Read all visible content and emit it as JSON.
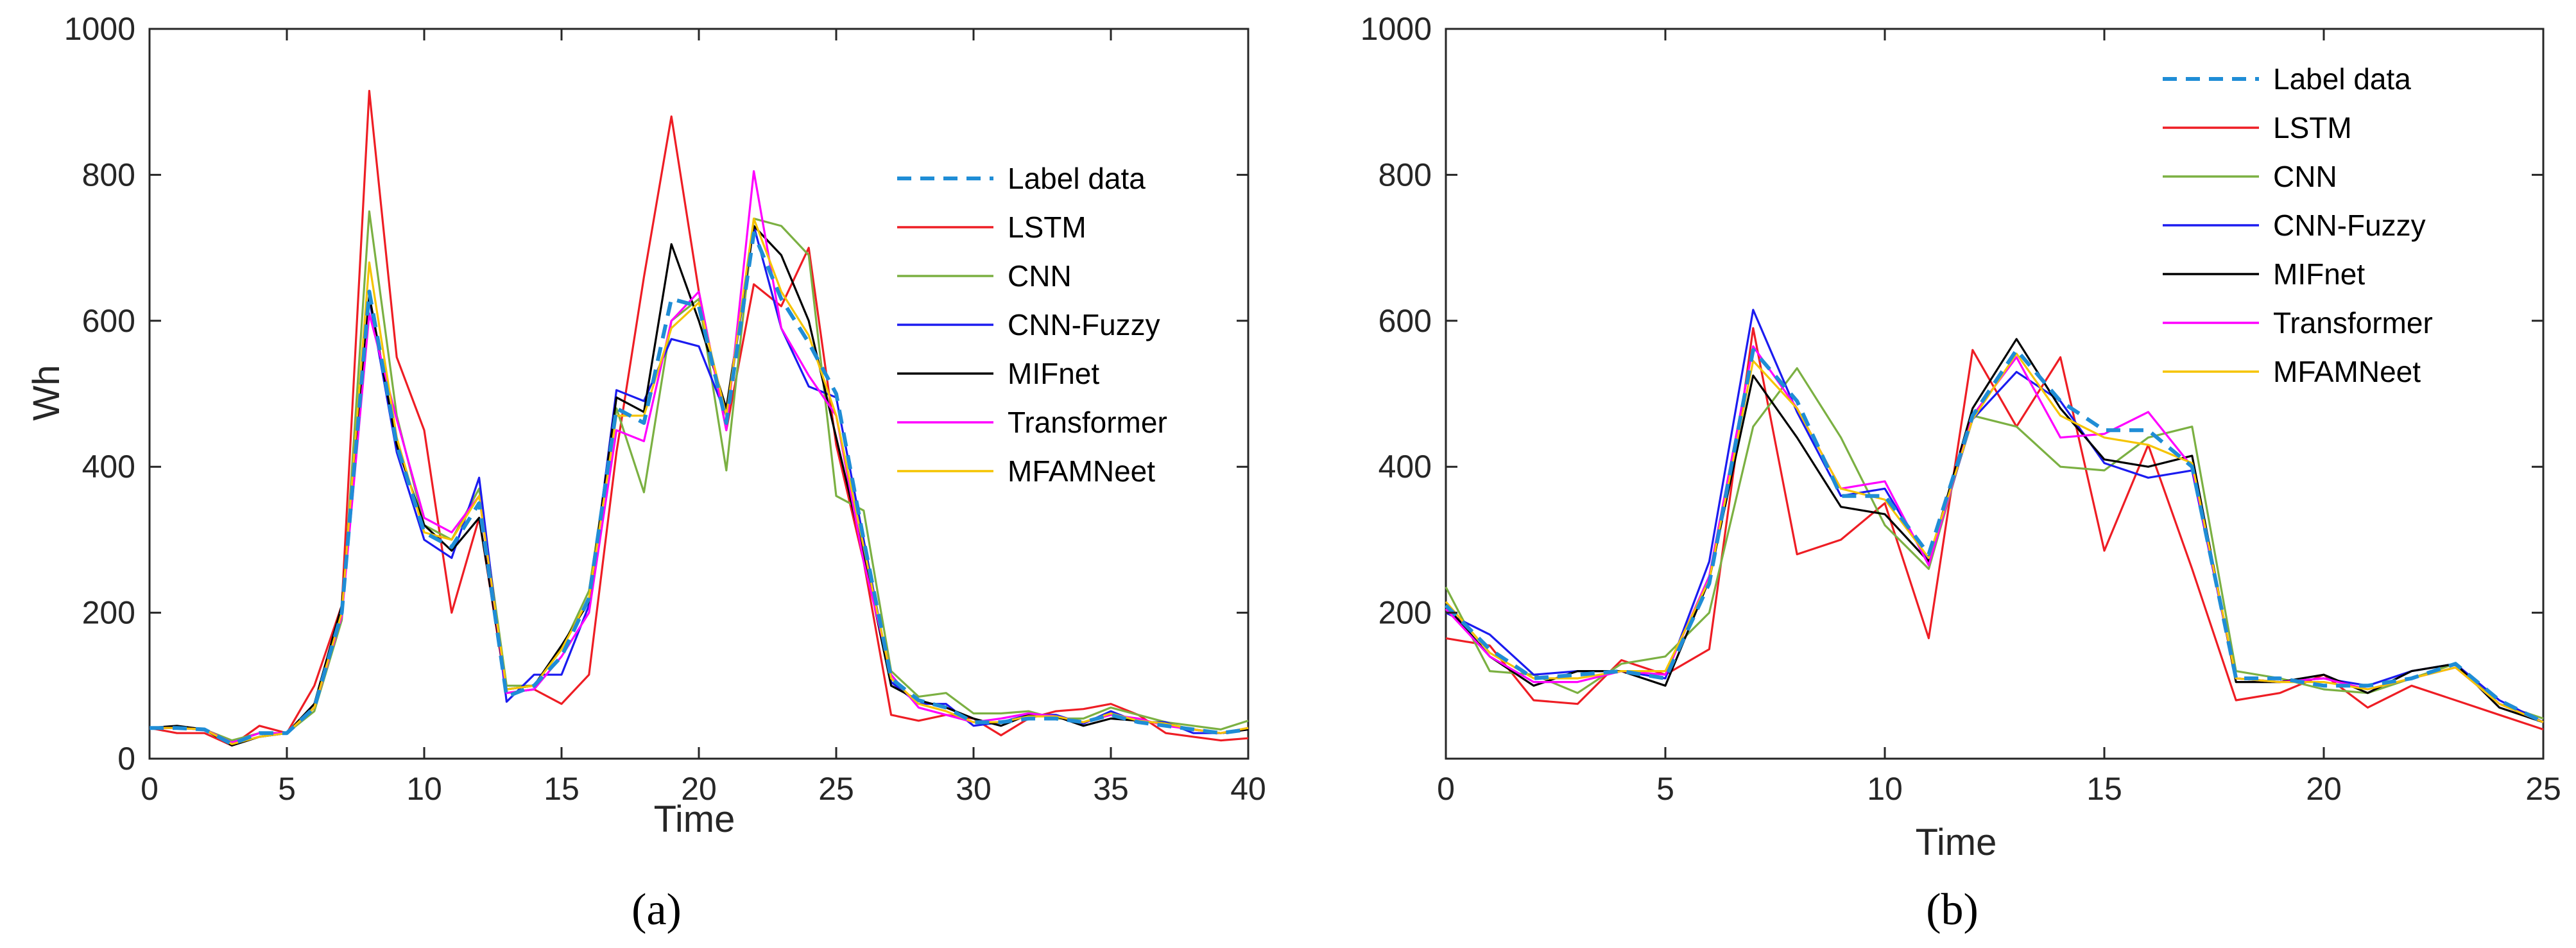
{
  "colors": {
    "Label data": "#1f8dd6",
    "LSTM": "#ee1d24",
    "CNN": "#7bb042",
    "CNN-Fuzzy": "#1b1bf0",
    "MIFnet": "#000000",
    "Transformer": "#ff00ff",
    "MFAMNeet": "#f5c400"
  },
  "chart_data": [
    {
      "id": "a",
      "type": "line",
      "caption": "(a)",
      "xlabel": "Time",
      "ylabel": "Wh",
      "xlim": [
        0,
        40
      ],
      "ylim": [
        0,
        1000
      ],
      "xticks": [
        0,
        5,
        10,
        15,
        20,
        25,
        30,
        35,
        40
      ],
      "yticks": [
        0,
        200,
        400,
        600,
        800,
        1000
      ],
      "x": [
        0,
        1,
        2,
        3,
        4,
        5,
        6,
        7,
        8,
        9,
        10,
        11,
        12,
        13,
        14,
        15,
        16,
        17,
        18,
        19,
        20,
        21,
        22,
        23,
        24,
        25,
        26,
        27,
        28,
        29,
        30,
        31,
        32,
        33,
        34,
        35,
        36,
        37,
        38,
        39,
        40
      ],
      "series": [
        {
          "name": "Label data",
          "dashed": true,
          "values": [
            42,
            42,
            40,
            20,
            35,
            35,
            70,
            200,
            640,
            430,
            310,
            290,
            350,
            85,
            100,
            140,
            220,
            480,
            460,
            630,
            620,
            460,
            720,
            630,
            570,
            500,
            300,
            110,
            80,
            70,
            50,
            50,
            55,
            55,
            50,
            60,
            50,
            45,
            40,
            35,
            40
          ]
        },
        {
          "name": "LSTM",
          "values": [
            42,
            35,
            35,
            18,
            45,
            35,
            100,
            210,
            915,
            550,
            450,
            200,
            330,
            90,
            95,
            75,
            115,
            420,
            660,
            880,
            640,
            450,
            650,
            620,
            700,
            430,
            270,
            60,
            52,
            60,
            55,
            32,
            55,
            65,
            68,
            75,
            60,
            35,
            30,
            25,
            28
          ]
        },
        {
          "name": "CNN",
          "values": [
            42,
            42,
            40,
            25,
            35,
            35,
            65,
            190,
            750,
            470,
            320,
            300,
            370,
            100,
            100,
            150,
            230,
            480,
            365,
            600,
            630,
            395,
            740,
            730,
            690,
            360,
            340,
            120,
            85,
            90,
            62,
            62,
            65,
            55,
            55,
            70,
            60,
            50,
            45,
            40,
            52
          ]
        },
        {
          "name": "CNN-Fuzzy",
          "values": [
            42,
            42,
            40,
            20,
            30,
            35,
            70,
            200,
            630,
            420,
            300,
            275,
            385,
            78,
            115,
            115,
            210,
            505,
            490,
            575,
            565,
            470,
            730,
            590,
            510,
            495,
            300,
            105,
            75,
            75,
            45,
            50,
            60,
            60,
            48,
            65,
            50,
            50,
            35,
            35,
            40
          ]
        },
        {
          "name": "MIFnet",
          "values": [
            42,
            45,
            40,
            18,
            30,
            35,
            75,
            210,
            635,
            430,
            320,
            285,
            330,
            95,
            100,
            155,
            215,
            495,
            475,
            705,
            600,
            480,
            730,
            690,
            600,
            440,
            280,
            100,
            80,
            70,
            55,
            45,
            60,
            58,
            45,
            55,
            52,
            48,
            40,
            35,
            40
          ]
        },
        {
          "name": "Transformer",
          "values": [
            42,
            42,
            40,
            22,
            35,
            35,
            70,
            195,
            610,
            465,
            330,
            310,
            360,
            90,
            95,
            140,
            200,
            450,
            435,
            600,
            640,
            450,
            805,
            590,
            525,
            470,
            270,
            115,
            70,
            60,
            50,
            55,
            62,
            58,
            50,
            60,
            55,
            45,
            40,
            35,
            42
          ]
        },
        {
          "name": "MFAMNeet",
          "values": [
            42,
            42,
            40,
            20,
            30,
            35,
            70,
            200,
            680,
            440,
            310,
            300,
            360,
            95,
            100,
            150,
            220,
            470,
            470,
            590,
            625,
            470,
            740,
            640,
            580,
            470,
            290,
            110,
            75,
            65,
            50,
            50,
            58,
            58,
            50,
            62,
            52,
            48,
            40,
            35,
            42
          ]
        }
      ]
    },
    {
      "id": "b",
      "type": "line",
      "caption": "(b)",
      "xlabel": "Time",
      "ylabel": "",
      "xlim": [
        0,
        25
      ],
      "ylim": [
        0,
        1000
      ],
      "xticks": [
        0,
        5,
        10,
        15,
        20,
        25
      ],
      "yticks": [
        200,
        400,
        600,
        800,
        1000
      ],
      "x": [
        0,
        1,
        2,
        3,
        4,
        5,
        6,
        7,
        8,
        9,
        10,
        11,
        12,
        13,
        14,
        15,
        16,
        17,
        18,
        19,
        20,
        21,
        22,
        23,
        24,
        25
      ],
      "series": [
        {
          "name": "Label data",
          "dashed": true,
          "values": [
            210,
            150,
            110,
            115,
            120,
            110,
            240,
            560,
            490,
            360,
            360,
            280,
            470,
            560,
            490,
            450,
            450,
            400,
            110,
            110,
            100,
            100,
            110,
            130,
            80,
            50
          ]
        },
        {
          "name": "LSTM",
          "values": [
            165,
            155,
            80,
            75,
            135,
            115,
            150,
            590,
            280,
            300,
            350,
            165,
            560,
            455,
            550,
            285,
            430,
            260,
            80,
            90,
            115,
            70,
            100,
            80,
            60,
            40
          ]
        },
        {
          "name": "CNN",
          "values": [
            235,
            120,
            115,
            90,
            130,
            140,
            200,
            455,
            535,
            440,
            320,
            260,
            470,
            455,
            400,
            395,
            440,
            455,
            120,
            110,
            95,
            90,
            110,
            130,
            75,
            55
          ]
        },
        {
          "name": "CNN-Fuzzy",
          "values": [
            200,
            170,
            115,
            120,
            120,
            110,
            270,
            615,
            475,
            360,
            370,
            270,
            465,
            530,
            490,
            405,
            385,
            395,
            110,
            105,
            110,
            100,
            120,
            130,
            80,
            50
          ]
        },
        {
          "name": "MIFnet",
          "values": [
            210,
            140,
            100,
            120,
            120,
            100,
            245,
            525,
            440,
            345,
            335,
            270,
            480,
            575,
            480,
            410,
            400,
            415,
            105,
            105,
            115,
            90,
            120,
            130,
            70,
            50
          ]
        },
        {
          "name": "Transformer",
          "values": [
            205,
            140,
            105,
            105,
            120,
            115,
            250,
            565,
            480,
            370,
            380,
            265,
            470,
            550,
            440,
            445,
            475,
            400,
            110,
            105,
            110,
            95,
            110,
            125,
            75,
            50
          ]
        },
        {
          "name": "MFAMNeet",
          "values": [
            215,
            145,
            110,
            110,
            120,
            120,
            245,
            545,
            480,
            370,
            355,
            275,
            465,
            555,
            470,
            440,
            430,
            405,
            110,
            105,
            105,
            95,
            110,
            125,
            75,
            50
          ]
        }
      ]
    }
  ]
}
